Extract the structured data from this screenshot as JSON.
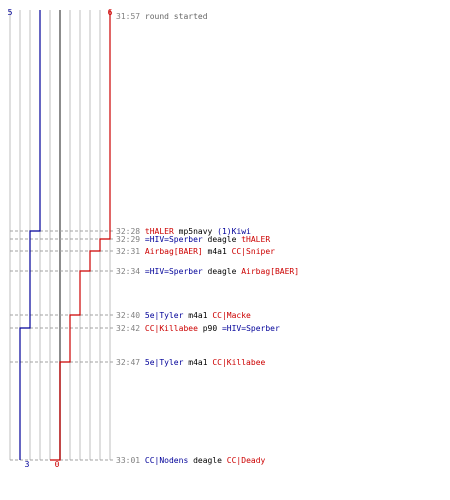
{
  "chart_data": {
    "type": "line",
    "title": "",
    "xlabel": "",
    "ylabel": "",
    "grid": true,
    "players_per_team": 6,
    "start_counts": {
      "blue": "5",
      "red": "6"
    },
    "end_counts": {
      "blue": "3",
      "red": "0"
    },
    "colors": {
      "blue": "#000099",
      "red": "#cc0000",
      "grid": "#bfbfbf",
      "center": "#666666",
      "guide": "#a0a0a0",
      "time": "#808080"
    },
    "series": [
      {
        "team": "blue",
        "steps": [
          {
            "time": "31:57",
            "alive": 5
          },
          {
            "time": "32:28",
            "alive": 4
          },
          {
            "time": "32:42",
            "alive": 3
          }
        ]
      },
      {
        "team": "red",
        "steps": [
          {
            "time": "31:57",
            "alive": 6
          },
          {
            "time": "32:29",
            "alive": 5
          },
          {
            "time": "32:31",
            "alive": 4
          },
          {
            "time": "32:34",
            "alive": 3
          },
          {
            "time": "32:40",
            "alive": 2
          },
          {
            "time": "32:47",
            "alive": 1
          },
          {
            "time": "33:01",
            "alive": 0
          }
        ]
      }
    ],
    "events": [
      {
        "time": "31:57",
        "parts": [
          {
            "text": "round started",
            "c": "gray"
          }
        ]
      },
      {
        "time": "32:28",
        "parts": [
          {
            "text": "tHALER",
            "c": "red"
          },
          {
            "text": " mp5navy ",
            "c": "black"
          },
          {
            "text": "(1)Kiwi",
            "c": "blue"
          }
        ]
      },
      {
        "time": "32:29",
        "parts": [
          {
            "text": "=HIV=Sperber",
            "c": "blue"
          },
          {
            "text": " deagle ",
            "c": "black"
          },
          {
            "text": "tHALER",
            "c": "red"
          }
        ]
      },
      {
        "time": "32:31",
        "parts": [
          {
            "text": "Airbag[BAER]",
            "c": "red"
          },
          {
            "text": " m4a1 ",
            "c": "black"
          },
          {
            "text": "CC|Sniper",
            "c": "red"
          }
        ]
      },
      {
        "time": "32:34",
        "parts": [
          {
            "text": "=HIV=Sperber",
            "c": "blue"
          },
          {
            "text": " deagle ",
            "c": "black"
          },
          {
            "text": "Airbag[BAER]",
            "c": "red"
          }
        ]
      },
      {
        "time": "32:40",
        "parts": [
          {
            "text": "5e|Tyler",
            "c": "blue"
          },
          {
            "text": " m4a1 ",
            "c": "black"
          },
          {
            "text": "CC|Macke",
            "c": "red"
          }
        ]
      },
      {
        "time": "32:42",
        "parts": [
          {
            "text": "CC|Killabee",
            "c": "red"
          },
          {
            "text": " p90 ",
            "c": "black"
          },
          {
            "text": "=HIV=Sperber",
            "c": "blue"
          }
        ]
      },
      {
        "time": "32:47",
        "parts": [
          {
            "text": "5e|Tyler",
            "c": "blue"
          },
          {
            "text": " m4a1 ",
            "c": "black"
          },
          {
            "text": "CC|Killabee",
            "c": "red"
          }
        ]
      },
      {
        "time": "33:01",
        "parts": [
          {
            "text": "CC|Nodens",
            "c": "blue"
          },
          {
            "text": " deagle ",
            "c": "black"
          },
          {
            "text": "CC|Deady",
            "c": "red"
          }
        ]
      }
    ]
  }
}
